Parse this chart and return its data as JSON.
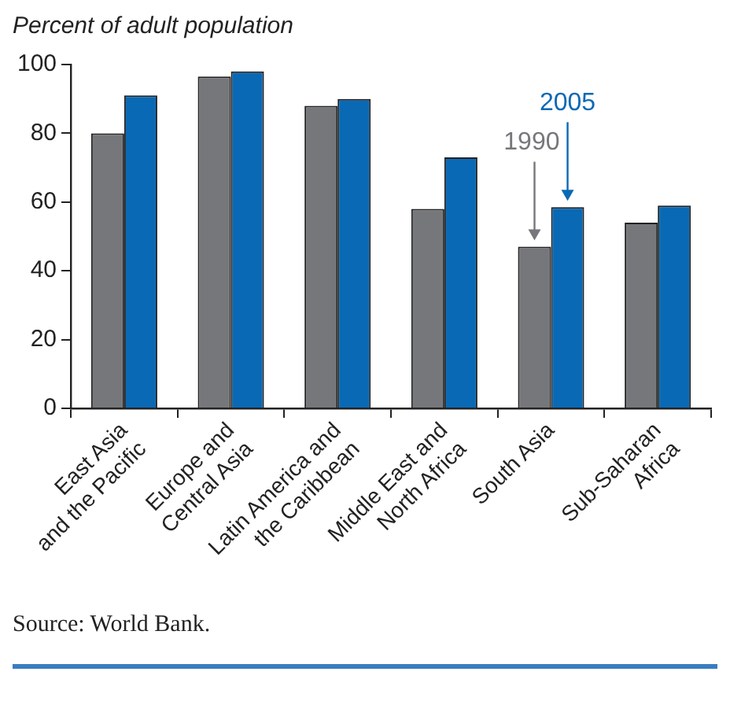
{
  "chart_data": {
    "type": "bar",
    "ylabel": "Percent of adult population",
    "categories": [
      "East Asia\nand the Pacific",
      "Europe and\nCentral Asia",
      "Latin America and\nthe Caribbean",
      "Middle East and\nNorth Africa",
      "South Asia",
      "Sub-Saharan\nAfrica"
    ],
    "series": [
      {
        "name": "1990",
        "color": "#76777b",
        "values": [
          80,
          96.5,
          88,
          58,
          47,
          54
        ]
      },
      {
        "name": "2005",
        "color": "#0a69b4",
        "values": [
          91,
          98,
          90,
          73,
          58.5,
          59
        ]
      }
    ],
    "ylim": [
      0,
      100
    ],
    "yticks": [
      0,
      20,
      40,
      60,
      80,
      100
    ],
    "grid": false,
    "legend": false,
    "annotations": [
      "Source: World Bank."
    ]
  }
}
